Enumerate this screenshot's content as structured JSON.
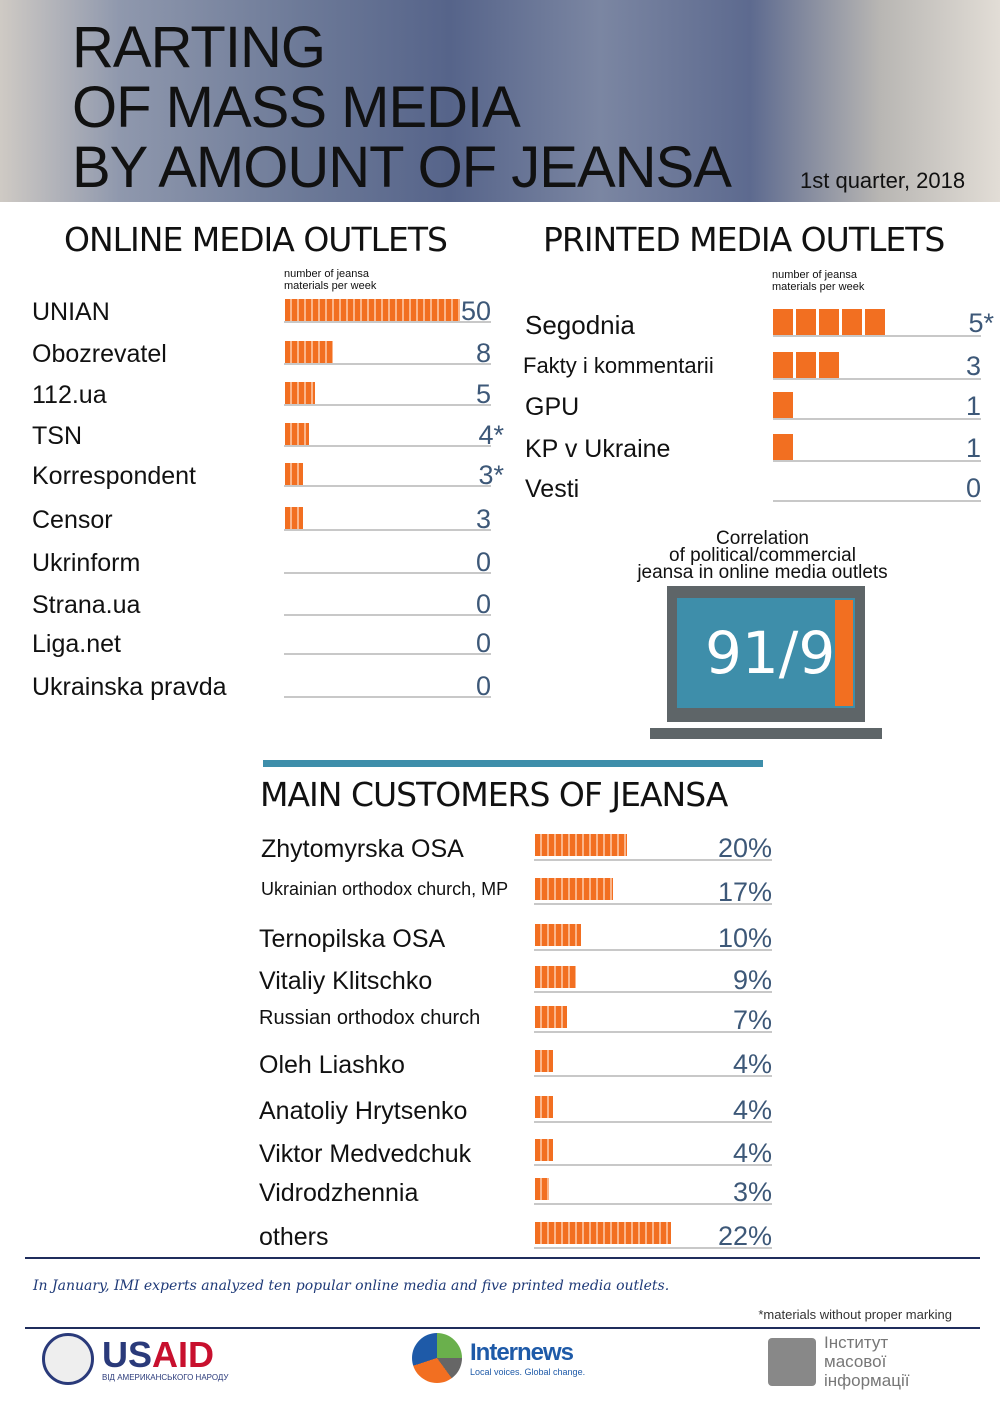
{
  "header": {
    "title_lines": [
      "RARTING",
      "OF MASS MEDIA",
      "BY AMOUNT OF JEANSA"
    ],
    "quarter": "1st quarter, 2018"
  },
  "colors": {
    "bar": "#f26f21",
    "value": "#3d5878",
    "accent": "#3e8eaa",
    "rule": "#1f2d5c"
  },
  "chart_data": [
    {
      "type": "bar",
      "title": "ONLINE MEDIA OUTLETS",
      "ylabel": "number of jeansa materials per week",
      "orientation": "horizontal",
      "categories": [
        "UNIAN",
        "Obozrevatel",
        "112.ua",
        "TSN",
        "Korrespondent",
        "Censor",
        "Ukrinform",
        "Strana.ua",
        "Liga.net",
        "Ukrainska pravda"
      ],
      "values": [
        50,
        8,
        5,
        4,
        3,
        3,
        0,
        0,
        0,
        0
      ],
      "labels": [
        "50",
        "8",
        "5",
        "4*",
        "3*",
        "3",
        "0",
        "0",
        "0",
        "0"
      ]
    },
    {
      "type": "bar",
      "title": "PRINTED MEDIA OUTLETS",
      "ylabel": "number of jeansa materials per week",
      "orientation": "horizontal",
      "categories": [
        "Segodnia",
        "Fakty i kommentarii",
        "GPU",
        "KP v Ukraine",
        "Vesti"
      ],
      "values": [
        5,
        3,
        1,
        1,
        0
      ],
      "labels": [
        "5*",
        "3",
        "1",
        "1",
        "0"
      ]
    },
    {
      "type": "bar",
      "title": "MAIN CUSTOMERS OF JEANSA",
      "orientation": "horizontal",
      "categories": [
        "Zhytomyrska OSA",
        "Ukrainian orthodox church, MP",
        "Ternopilska OSA",
        "Vitaliy Klitschko",
        "Russian orthodox church",
        "Oleh Liashko",
        "Anatoliy Hrytsenko",
        "Viktor Medvedchuk",
        "Vidrodzhennia",
        "others"
      ],
      "values": [
        20,
        17,
        10,
        9,
        7,
        4,
        4,
        4,
        3,
        22
      ],
      "labels": [
        "20%",
        "17%",
        "10%",
        "9%",
        "7%",
        "4%",
        "4%",
        "4%",
        "3%",
        "22%"
      ]
    }
  ],
  "correlation": {
    "title_lines": [
      "Correlation",
      "of political/commercial",
      "jeansa in online media outlets"
    ],
    "value": "91/9",
    "political_share": 91
  },
  "footer": {
    "note": "In January, IMI experts analyzed ten popular online media and five printed media outlets.",
    "asterisk": "*materials without proper marking",
    "logos": {
      "usaid": "USAID",
      "usaid_sub": "ВІД АМЕРИКАНСЬКОГО НАРОДУ",
      "internews": "Internews",
      "internews_sub": "Local voices. Global change.",
      "imi": "Інститут масової інформації"
    }
  }
}
